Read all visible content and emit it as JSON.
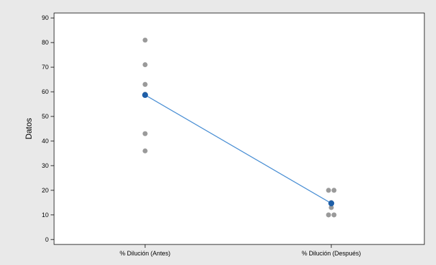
{
  "chart_data": {
    "type": "scatter",
    "title": "",
    "xlabel": "",
    "ylabel": "Datos",
    "categories": [
      "% Dilución (Antes)",
      "% Dilución (Después)"
    ],
    "ylim": [
      -2,
      92
    ],
    "yticks": [
      0,
      10,
      20,
      30,
      40,
      50,
      60,
      70,
      80,
      90
    ],
    "grid": false,
    "legend": "none",
    "series": [
      {
        "category": "% Dilución (Antes)",
        "points": [
          {
            "offset": 0,
            "y": 81
          },
          {
            "offset": 0,
            "y": 71
          },
          {
            "offset": 0,
            "y": 63
          },
          {
            "offset": 0,
            "y": 59
          },
          {
            "offset": 0,
            "y": 43
          },
          {
            "offset": 0,
            "y": 36
          }
        ],
        "mean": 58.7
      },
      {
        "category": "% Dilución (Después)",
        "points": [
          {
            "offset": -1,
            "y": 20
          },
          {
            "offset": 1,
            "y": 20
          },
          {
            "offset": 0,
            "y": 15
          },
          {
            "offset": 0,
            "y": 13
          },
          {
            "offset": -1,
            "y": 10
          },
          {
            "offset": 1,
            "y": 10
          }
        ],
        "mean": 14.7
      }
    ],
    "colors": {
      "background": "#e9e9e9",
      "plot_area": "#ffffff",
      "points": "#9a9a9a",
      "mean_marker": "#1f5fa8",
      "mean_line": "#4a8fd4",
      "axis": "#000000"
    }
  }
}
